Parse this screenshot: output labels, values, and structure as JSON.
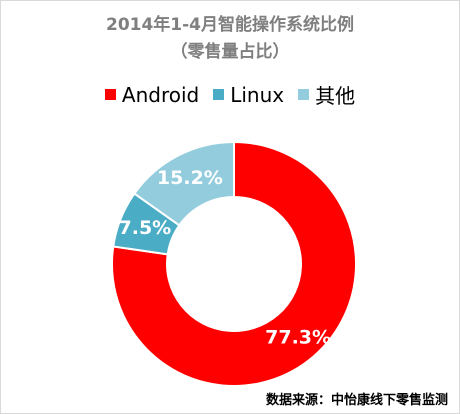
{
  "chart_data": {
    "type": "pie",
    "title": "2014年1-4月智能操作系统比例",
    "subtitle": "（零售量占比）",
    "legend_position": "top",
    "slices": [
      {
        "label": "Android",
        "value": 77.3,
        "value_label": "77.3%",
        "color": "#ff0000"
      },
      {
        "label": "Linux",
        "value": 7.5,
        "value_label": "7.5%",
        "color": "#4bacc6"
      },
      {
        "label": "其他",
        "value": 15.2,
        "value_label": "15.2%",
        "color": "#93cddd"
      }
    ]
  },
  "source_note": "数据来源：中怡康线下零售监测"
}
